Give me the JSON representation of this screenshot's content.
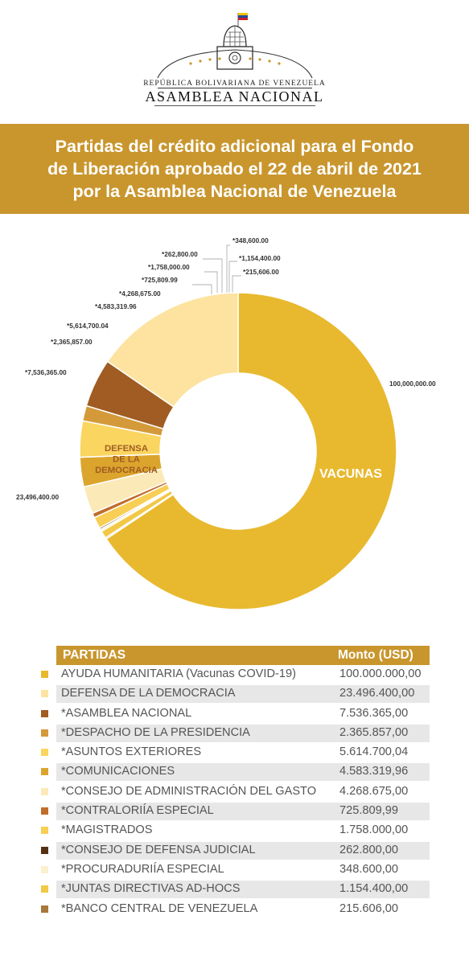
{
  "header": {
    "republica": "REPÚBLICA BOLIVARIANA DE VENEZUELA",
    "asamblea": "ASAMBLEA NACIONAL"
  },
  "banner": {
    "title": "Partidas del crédito adicional para el Fondo\nde Liberación aprobado el 22 de abril de 2021\npor la Asamblea Nacional de Venezuela"
  },
  "chart_data": {
    "type": "pie",
    "donut": true,
    "inner_labels": [
      "VACUNAS",
      "DEFENSA\nDE LA\nDEMOCRACIA"
    ],
    "slices": [
      {
        "label": "100,000,000.00",
        "value": 100000000.0,
        "color": "#e8b92e"
      },
      {
        "label": "*215,606.00",
        "value": 215606.0,
        "color": "#a7773c"
      },
      {
        "label": "*1,154,400.00",
        "value": 1154400.0,
        "color": "#f2c846"
      },
      {
        "label": "*348,600.00",
        "value": 348600.0,
        "color": "#fbf1cf"
      },
      {
        "label": "*262,800.00",
        "value": 262800.0,
        "color": "#553114"
      },
      {
        "label": "*1,758,000.00",
        "value": 1758000.0,
        "color": "#f8ce54"
      },
      {
        "label": "*725,809.99",
        "value": 725809.99,
        "color": "#c06e2c"
      },
      {
        "label": "*4,268,675.00",
        "value": 4268675.0,
        "color": "#fbe9b8"
      },
      {
        "label": "*4,583,319.96",
        "value": 4583319.96,
        "color": "#dba52d"
      },
      {
        "label": "*5,614,700.04",
        "value": 5614700.04,
        "color": "#fad560"
      },
      {
        "label": "*2,365,857.00",
        "value": 2365857.0,
        "color": "#d49a3a"
      },
      {
        "label": "*7,536,365.00",
        "value": 7536365.0,
        "color": "#a05c22"
      },
      {
        "label": "23,496,400.00",
        "value": 23496400.0,
        "color": "#fde39f"
      }
    ]
  },
  "table": {
    "header_name": "PARTIDAS",
    "header_amount": "Monto (USD)",
    "rows": [
      {
        "name": "AYUDA HUMANITARIA (Vacunas COVID-19)",
        "amount": "100.000.000,00",
        "color": "#e8b92e"
      },
      {
        "name": "DEFENSA DE LA DEMOCRACIA",
        "amount": "23.496.400,00",
        "color": "#fde39f"
      },
      {
        "name": "*ASAMBLEA NACIONAL",
        "amount": "7.536.365,00",
        "color": "#a05c22"
      },
      {
        "name": "*DESPACHO DE LA PRESIDENCIA",
        "amount": "2.365.857,00",
        "color": "#d49a3a"
      },
      {
        "name": "*ASUNTOS EXTERIORES",
        "amount": "5.614.700,04",
        "color": "#fad560"
      },
      {
        "name": "*COMUNICACIONES",
        "amount": "4.583.319,96",
        "color": "#dba52d"
      },
      {
        "name": "*CONSEJO DE ADMINISTRACIÓN DEL GASTO",
        "amount": "4.268.675,00",
        "color": "#fbe9b8"
      },
      {
        "name": "*CONTRALORIÍA ESPECIAL",
        "amount": "725.809,99",
        "color": "#c06e2c"
      },
      {
        "name": "*MAGISTRADOS",
        "amount": "1.758.000,00",
        "color": "#f8ce54"
      },
      {
        "name": "*CONSEJO DE DEFENSA JUDICIAL",
        "amount": "262.800,00",
        "color": "#553114"
      },
      {
        "name": "*PROCURADURIÍA ESPECIAL",
        "amount": "348.600,00",
        "color": "#fbf1cf"
      },
      {
        "name": "*JUNTAS DIRECTIVAS AD-HOCS",
        "amount": "1.154.400,00",
        "color": "#f2c846"
      },
      {
        "name": "*BANCO CENTRAL DE VENEZUELA",
        "amount": "215.606,00",
        "color": "#a7773c"
      }
    ]
  }
}
